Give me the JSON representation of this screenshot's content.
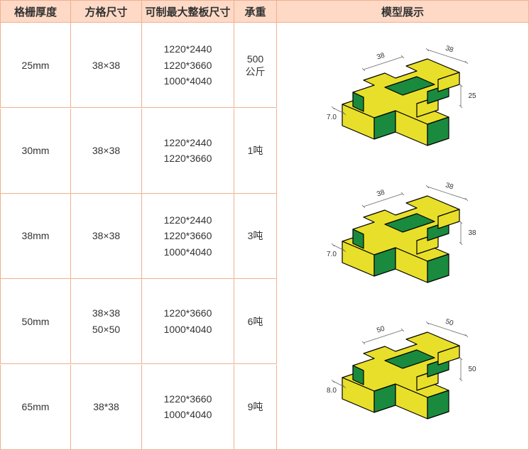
{
  "table": {
    "headers": [
      "格栅厚度",
      "方格尺寸",
      "可制最大整板尺寸",
      "承重",
      "模型展示"
    ],
    "rows": [
      {
        "thickness": "25mm",
        "grid_sizes": [
          "38×38"
        ],
        "max_sizes": [
          "1220*2440",
          "1220*3660",
          "1000*4040"
        ],
        "load": "500\n公斤"
      },
      {
        "thickness": "30mm",
        "grid_sizes": [
          "38×38"
        ],
        "max_sizes": [
          "1220*2440",
          "1220*3660"
        ],
        "load": "1吨"
      },
      {
        "thickness": "38mm",
        "grid_sizes": [
          "38×38"
        ],
        "max_sizes": [
          "1220*2440",
          "1220*3660",
          "1000*4040"
        ],
        "load": "3吨"
      },
      {
        "thickness": "50mm",
        "grid_sizes": [
          "38×38",
          "50×50"
        ],
        "max_sizes": [
          "1220*3660",
          "1000*4040"
        ],
        "load": "6吨"
      },
      {
        "thickness": "65mm",
        "grid_sizes": [
          "38*38"
        ],
        "max_sizes": [
          "1220*3660",
          "1000*4040"
        ],
        "load": "9吨"
      }
    ]
  },
  "models": [
    {
      "dim_a": "38",
      "dim_b": "38",
      "dim_c": "7.0",
      "dim_d": "25"
    },
    {
      "dim_a": "38",
      "dim_b": "38",
      "dim_c": "7.0",
      "dim_d": "38"
    },
    {
      "dim_a": "50",
      "dim_b": "50",
      "dim_c": "8.0",
      "dim_d": "50"
    }
  ],
  "colors": {
    "header_bg": "#fdd9c6",
    "border": "#f0b090",
    "model_fill": "#e8df2a",
    "model_inner": "#1a8b3e",
    "model_stroke": "#000",
    "dim_line": "#666",
    "text": "#333",
    "bg": "#ffffff"
  },
  "fonts": {
    "header_size": 15,
    "data_size": 14,
    "dim_size": 10
  }
}
